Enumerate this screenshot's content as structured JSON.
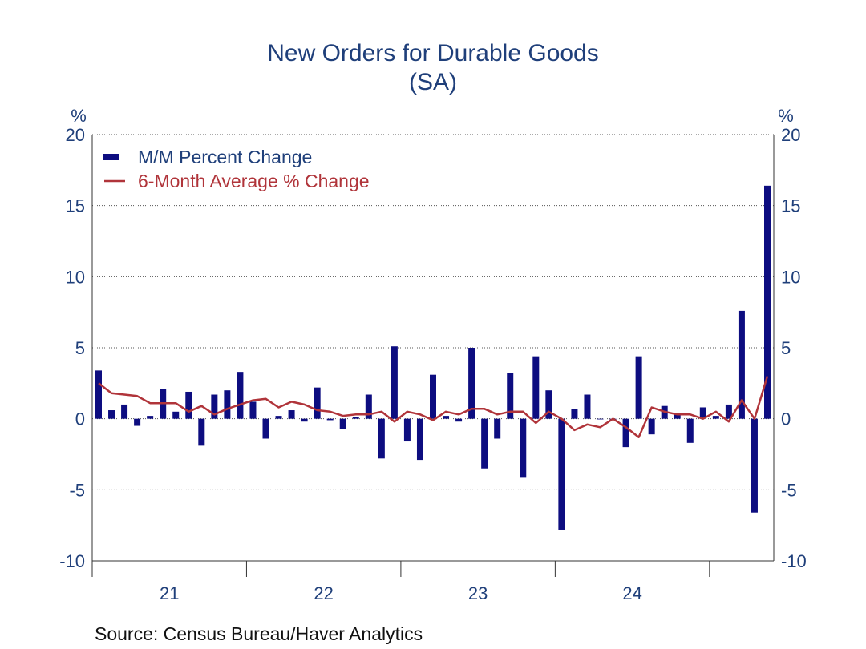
{
  "source_label": "Source:  Census Bureau/Haver Analytics",
  "colors": {
    "bars": "#0d0d80",
    "line": "#b0343a",
    "text": "#1f3f7a"
  },
  "chart_data": {
    "type": "bar",
    "title": "New Orders for Durable Goods",
    "subtitle": "(SA)",
    "ylabel_left": "%",
    "ylabel_right": "%",
    "ylim": [
      -10,
      20
    ],
    "yticks": [
      20,
      15,
      10,
      5,
      0,
      -5,
      -10
    ],
    "grid": "horizontal dotted",
    "legend_position": "top-left",
    "xtick_labels": [
      "21",
      "22",
      "23",
      "24"
    ],
    "series": [
      {
        "name": "M/M Percent Change",
        "kind": "bar",
        "values": [
          3.4,
          0.6,
          1.0,
          -0.5,
          0.2,
          2.1,
          0.5,
          1.9,
          -1.9,
          1.7,
          2.0,
          3.3,
          1.2,
          -1.4,
          0.2,
          0.6,
          -0.2,
          2.2,
          -0.1,
          -0.7,
          0.1,
          1.7,
          -2.8,
          5.1,
          -1.6,
          -2.9,
          3.1,
          0.2,
          -0.2,
          5.0,
          -3.5,
          -1.4,
          3.2,
          -4.1,
          4.4,
          2.0,
          -7.8,
          0.7,
          1.7,
          0.0,
          -0.1,
          -2.0,
          4.4,
          -1.1,
          0.9,
          0.3,
          -1.7,
          0.8,
          0.2,
          1.0,
          7.6,
          -6.6,
          16.4
        ]
      },
      {
        "name": "6-Month Average % Change",
        "kind": "line",
        "values": [
          2.5,
          1.8,
          1.7,
          1.6,
          1.1,
          1.1,
          1.1,
          0.5,
          0.9,
          0.3,
          0.7,
          1.0,
          1.3,
          1.4,
          0.8,
          1.2,
          1.0,
          0.6,
          0.5,
          0.2,
          0.3,
          0.3,
          0.5,
          -0.2,
          0.5,
          0.3,
          -0.1,
          0.5,
          0.3,
          0.7,
          0.7,
          0.3,
          0.5,
          0.5,
          -0.3,
          0.5,
          0.0,
          -0.8,
          -0.4,
          -0.6,
          0.0,
          -0.6,
          -1.3,
          0.8,
          0.5,
          0.3,
          0.3,
          0.0,
          0.5,
          -0.2,
          1.3,
          0.0,
          3.0
        ]
      }
    ]
  }
}
